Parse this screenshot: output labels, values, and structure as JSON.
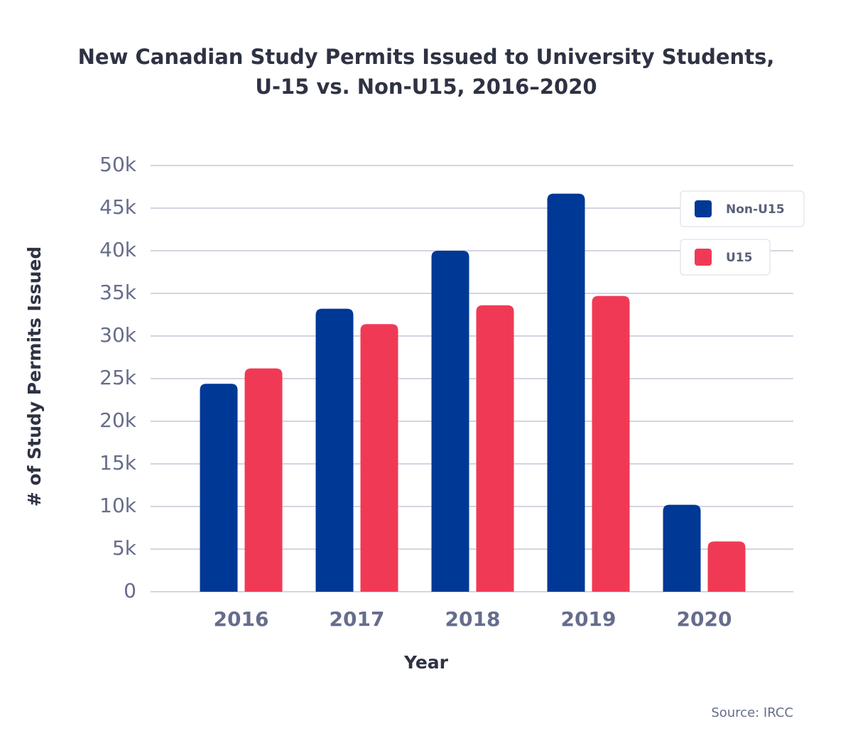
{
  "chart_data": {
    "type": "bar",
    "title": "New Canadian Study Permits Issued to University Students,",
    "subtitle": "U-15 vs. Non-U15, 2016–2020",
    "x_label": "Year",
    "y_label": "# of Study Permits Issued",
    "source": "Source: IRCC",
    "categories": [
      "2016",
      "2017",
      "2018",
      "2019",
      "2020"
    ],
    "series": [
      {
        "name": "Non-U15",
        "color": "#003896",
        "values": [
          24400,
          33200,
          40000,
          46700,
          10200
        ]
      },
      {
        "name": "U15",
        "color": "#f03a55",
        "values": [
          26200,
          31400,
          33600,
          34700,
          5900
        ]
      }
    ],
    "ylim": [
      0,
      50000
    ],
    "yticks": [
      0,
      {
        "value": 5000,
        "label": "5k"
      },
      {
        "value": 10000,
        "label": "10k"
      },
      {
        "value": 15000,
        "label": "15k"
      },
      {
        "value": 20000,
        "label": "20k"
      },
      {
        "value": 25000,
        "label": "25k"
      },
      {
        "value": 30000,
        "label": "30k"
      },
      {
        "value": 35000,
        "label": "35k"
      },
      {
        "value": 40000,
        "label": "40k"
      },
      {
        "value": 45000,
        "label": "45k"
      },
      {
        "value": 50000,
        "label": "50k"
      }
    ],
    "grid": true,
    "legend": "top-right"
  }
}
